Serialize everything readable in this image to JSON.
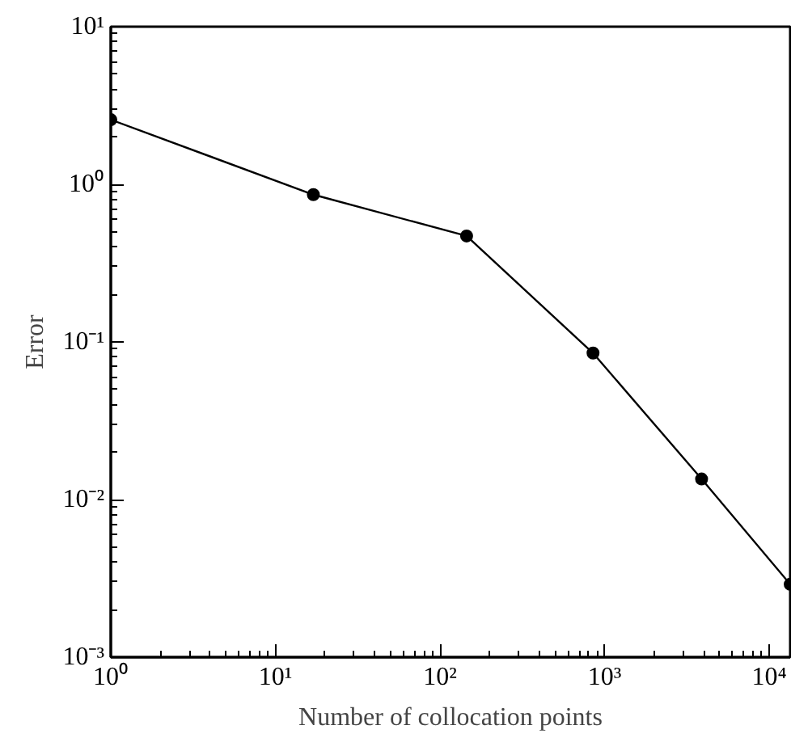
{
  "chart_data": {
    "type": "line",
    "xlabel": "Number of collocation points",
    "ylabel": "Error",
    "log": "xy",
    "grid": false,
    "marker": "circle",
    "line_style": "solid",
    "x": [
      1,
      17,
      145,
      850,
      3880,
      13400
    ],
    "series": [
      {
        "color": "#000000",
        "values": [
          2.57,
          0.86,
          0.47,
          0.085,
          0.0135,
          0.0029
        ]
      }
    ],
    "xlim": [
      1,
      13400
    ],
    "ylim": [
      0.001,
      10
    ],
    "xticks": [
      {
        "value": 1,
        "label": "10⁰"
      },
      {
        "value": 10,
        "label": "10¹"
      },
      {
        "value": 100,
        "label": "10²"
      },
      {
        "value": 1000,
        "label": "10³"
      },
      {
        "value": 10000,
        "label": "10⁴"
      }
    ],
    "yticks": [
      {
        "value": 0.001,
        "label": "10⁻³"
      },
      {
        "value": 0.01,
        "label": "10⁻²"
      },
      {
        "value": 0.1,
        "label": "10⁻¹"
      },
      {
        "value": 1,
        "label": "10⁰"
      },
      {
        "value": 10,
        "label": "10¹"
      }
    ]
  }
}
